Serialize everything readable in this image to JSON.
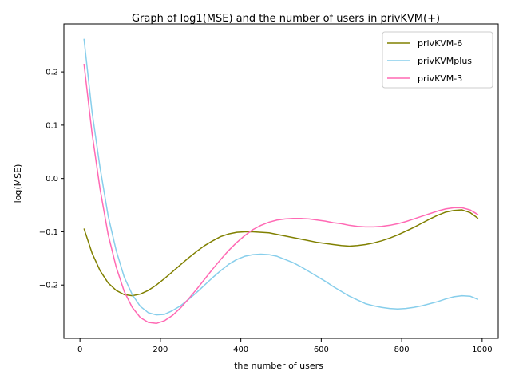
{
  "chart_data": {
    "type": "line",
    "title": "Graph of log1(MSE) and the number of users in privKVM(+)",
    "xlabel": "the number of users",
    "ylabel": "log(MSE)",
    "xlim": [
      -40,
      1040
    ],
    "ylim": [
      -0.3,
      0.29
    ],
    "xticks": [
      0,
      200,
      400,
      600,
      800,
      1000
    ],
    "yticks": [
      -0.2,
      -0.1,
      0.0,
      0.1,
      0.2
    ],
    "x_tick_labels": [
      "0",
      "200",
      "400",
      "600",
      "800",
      "1000"
    ],
    "y_tick_labels": [
      "−0.2",
      "−0.1",
      "0.0",
      "0.1",
      "0.2"
    ],
    "legend_position": "top-right",
    "x": [
      10,
      30,
      50,
      70,
      90,
      110,
      130,
      150,
      170,
      190,
      210,
      230,
      250,
      270,
      290,
      310,
      330,
      350,
      370,
      390,
      410,
      430,
      450,
      470,
      490,
      510,
      530,
      550,
      570,
      590,
      610,
      630,
      650,
      670,
      690,
      710,
      730,
      750,
      770,
      790,
      810,
      830,
      850,
      870,
      890,
      910,
      930,
      950,
      970,
      990
    ],
    "series": [
      {
        "name": "privKVM-6",
        "color": "#808000",
        "values": [
          -0.094,
          -0.14,
          -0.173,
          -0.196,
          -0.21,
          -0.218,
          -0.22,
          -0.217,
          -0.21,
          -0.2,
          -0.188,
          -0.175,
          -0.162,
          -0.149,
          -0.137,
          -0.126,
          -0.117,
          -0.109,
          -0.104,
          -0.101,
          -0.1,
          -0.1,
          -0.101,
          -0.102,
          -0.105,
          -0.108,
          -0.111,
          -0.114,
          -0.117,
          -0.12,
          -0.122,
          -0.124,
          -0.126,
          -0.127,
          -0.126,
          -0.124,
          -0.121,
          -0.117,
          -0.112,
          -0.106,
          -0.099,
          -0.092,
          -0.084,
          -0.076,
          -0.069,
          -0.063,
          -0.06,
          -0.059,
          -0.064,
          -0.075
        ]
      },
      {
        "name": "privKVMplus",
        "color": "#87ceeb",
        "values": [
          0.262,
          0.125,
          0.02,
          -0.07,
          -0.135,
          -0.185,
          -0.218,
          -0.24,
          -0.252,
          -0.256,
          -0.255,
          -0.248,
          -0.239,
          -0.227,
          -0.214,
          -0.2,
          -0.186,
          -0.173,
          -0.161,
          -0.152,
          -0.146,
          -0.143,
          -0.142,
          -0.143,
          -0.146,
          -0.152,
          -0.158,
          -0.166,
          -0.175,
          -0.184,
          -0.193,
          -0.203,
          -0.212,
          -0.221,
          -0.228,
          -0.235,
          -0.239,
          -0.242,
          -0.244,
          -0.245,
          -0.244,
          -0.242,
          -0.239,
          -0.235,
          -0.231,
          -0.226,
          -0.222,
          -0.22,
          -0.221,
          -0.227
        ]
      },
      {
        "name": "privKVM-3",
        "color": "#ff69b4",
        "values": [
          0.215,
          0.085,
          -0.02,
          -0.105,
          -0.166,
          -0.212,
          -0.242,
          -0.261,
          -0.27,
          -0.272,
          -0.267,
          -0.257,
          -0.243,
          -0.226,
          -0.208,
          -0.189,
          -0.17,
          -0.152,
          -0.135,
          -0.12,
          -0.107,
          -0.096,
          -0.088,
          -0.082,
          -0.078,
          -0.076,
          -0.075,
          -0.075,
          -0.076,
          -0.078,
          -0.08,
          -0.083,
          -0.085,
          -0.088,
          -0.09,
          -0.091,
          -0.091,
          -0.09,
          -0.088,
          -0.085,
          -0.081,
          -0.076,
          -0.071,
          -0.066,
          -0.061,
          -0.057,
          -0.055,
          -0.055,
          -0.059,
          -0.068
        ]
      }
    ]
  }
}
